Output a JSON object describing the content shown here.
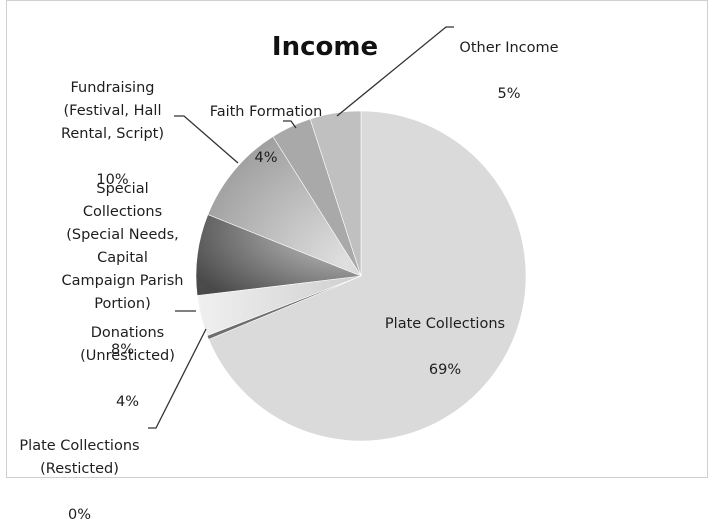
{
  "chart_data": {
    "type": "pie",
    "title": "Income",
    "start_angle_deg": 0,
    "direction": "clockwise",
    "slices": [
      {
        "label": "Plate Collections",
        "value": 69,
        "value_label": "69%",
        "color": "#d9d9d9"
      },
      {
        "label": "Plate Collections\n(Resticted)",
        "value": 0.4,
        "value_label": "0%",
        "color": "#707070"
      },
      {
        "label": "Donations\n(Unresticted)",
        "value": 4,
        "value_label": "4%",
        "color": "#e4e4e4"
      },
      {
        "label": "Special\nCollections\n(Special Needs,\nCapital\nCampaign Parish\nPortion)",
        "value": 8,
        "value_label": "8%",
        "color": "#8a8a8a"
      },
      {
        "label": "Fundraising\n(Festival, Hall\nRental, Script)",
        "value": 10,
        "value_label": "10%",
        "color": "#c8c8c8"
      },
      {
        "label": "Faith Formation",
        "value": 4,
        "value_label": "4%",
        "color": "#a8a8a8"
      },
      {
        "label": "Other Income",
        "value": 5,
        "value_label": "5%",
        "color": "#bebebe"
      }
    ],
    "legend": "none"
  }
}
